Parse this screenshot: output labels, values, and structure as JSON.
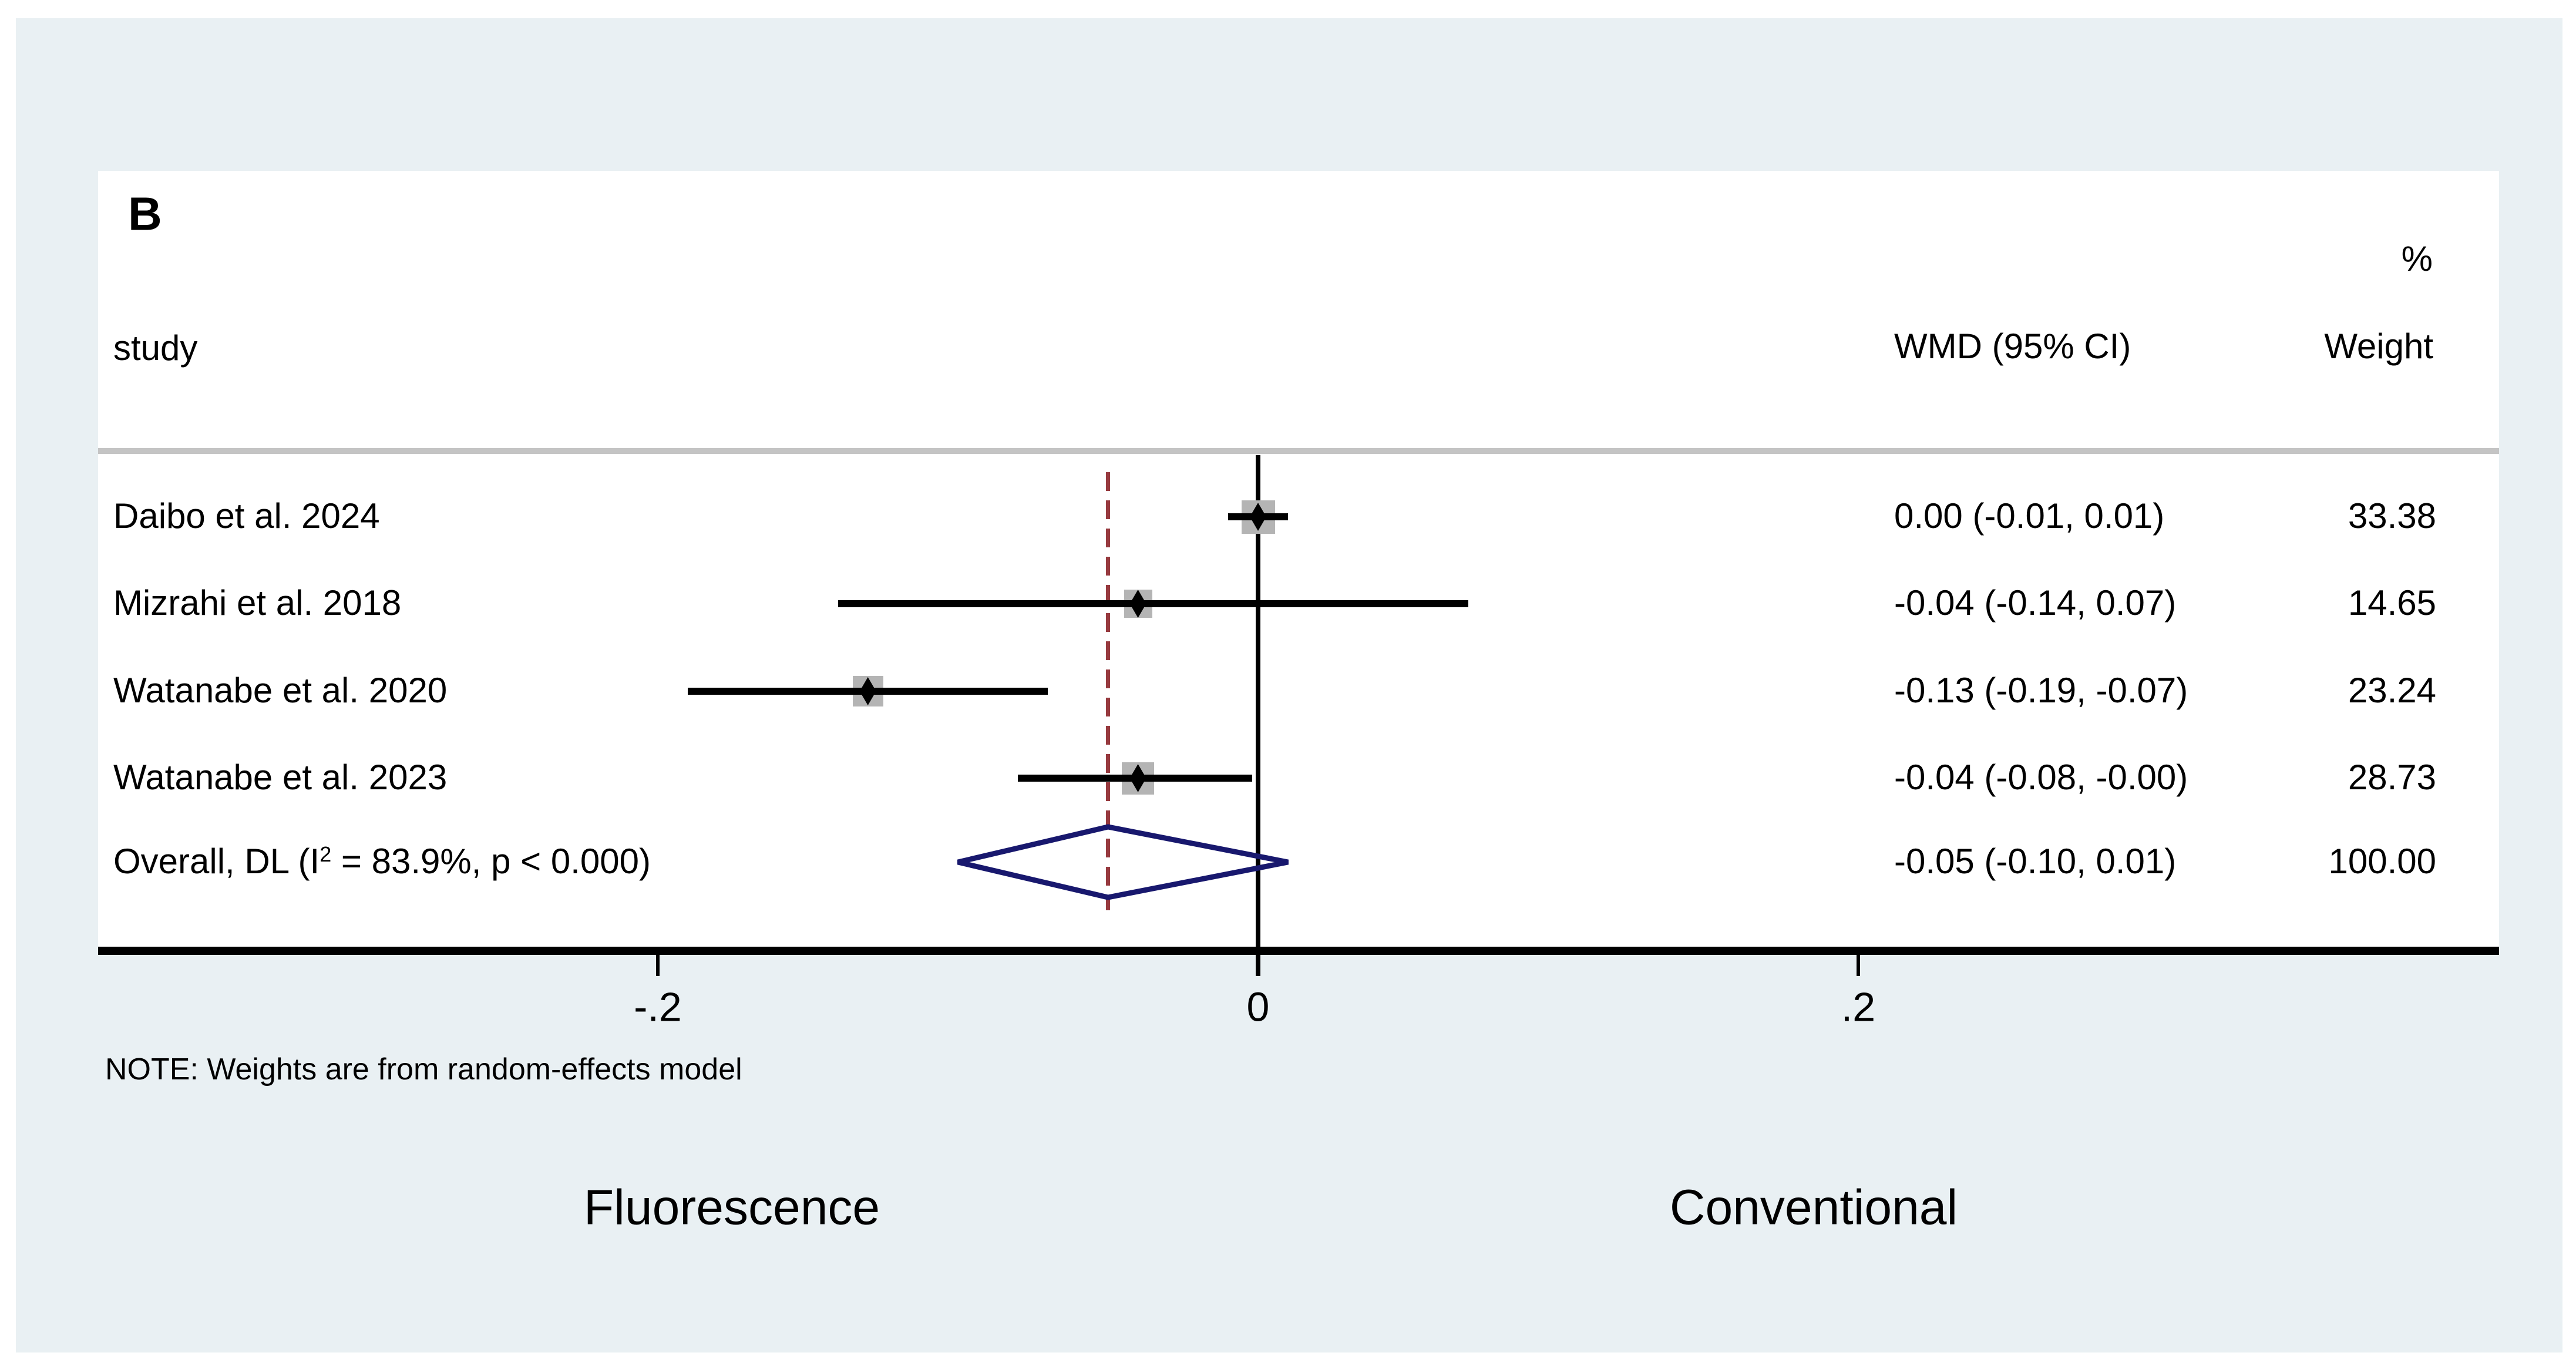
{
  "panel_label": "B",
  "table": {
    "study_header": "study",
    "percent_header": "%",
    "wmd_header": "WMD (95% CI)",
    "weight_header": "Weight"
  },
  "note": "NOTE: Weights are from random-effects model",
  "axis_labels": {
    "left": "Fluorescence",
    "right": "Conventional"
  },
  "overall": {
    "label_prefix": "Overall, DL (I",
    "label_sup": "2",
    "label_suffix": " = 83.9%, p < 0.000)",
    "wmd_ci_text": "-0.05 (-0.10, 0.01)",
    "weight_text": "100.00"
  },
  "colors": {
    "background": "#e9f0f3",
    "panel": "#ffffff",
    "axis": "#000000",
    "separator": "#c4c4c4",
    "null_line": "#000000",
    "overall_dashed_line": "#973a3f",
    "diamond_outline": "#18186e",
    "weight_square": "#b4b4b4",
    "text": "#000000"
  },
  "chart_data": {
    "type": "forest",
    "effect_measure": "WMD",
    "x_ticks": [
      {
        "value": -0.2,
        "label": "-.2"
      },
      {
        "value": 0,
        "label": "0"
      },
      {
        "value": 0.2,
        "label": ".2"
      }
    ],
    "null_line_value": 0,
    "overall_line_value": -0.05,
    "studies": [
      {
        "study": "Daibo et al. 2024",
        "est": 0.0,
        "lo": -0.01,
        "hi": 0.01,
        "wmd_ci_text": "0.00 (-0.01, 0.01)",
        "weight": 33.38,
        "weight_text": "33.38"
      },
      {
        "study": "Mizrahi et al. 2018",
        "est": -0.04,
        "lo": -0.14,
        "hi": 0.07,
        "wmd_ci_text": "-0.04 (-0.14, 0.07)",
        "weight": 14.65,
        "weight_text": "14.65"
      },
      {
        "study": "Watanabe et al. 2020",
        "est": -0.13,
        "lo": -0.19,
        "hi": -0.07,
        "wmd_ci_text": "-0.13 (-0.19, -0.07)",
        "weight": 23.24,
        "weight_text": "23.24"
      },
      {
        "study": "Watanabe et al. 2023",
        "est": -0.04,
        "lo": -0.08,
        "hi": -0.002,
        "wmd_ci_text": "-0.04 (-0.08, -0.00)",
        "weight": 28.73,
        "weight_text": "28.73"
      }
    ],
    "overall_summary": {
      "est": -0.05,
      "lo": -0.1,
      "hi": 0.01,
      "weight": 100.0
    },
    "heterogeneity": {
      "I2": "83.9%",
      "p": "< 0.000"
    },
    "legend_position": "none",
    "grid": false
  }
}
